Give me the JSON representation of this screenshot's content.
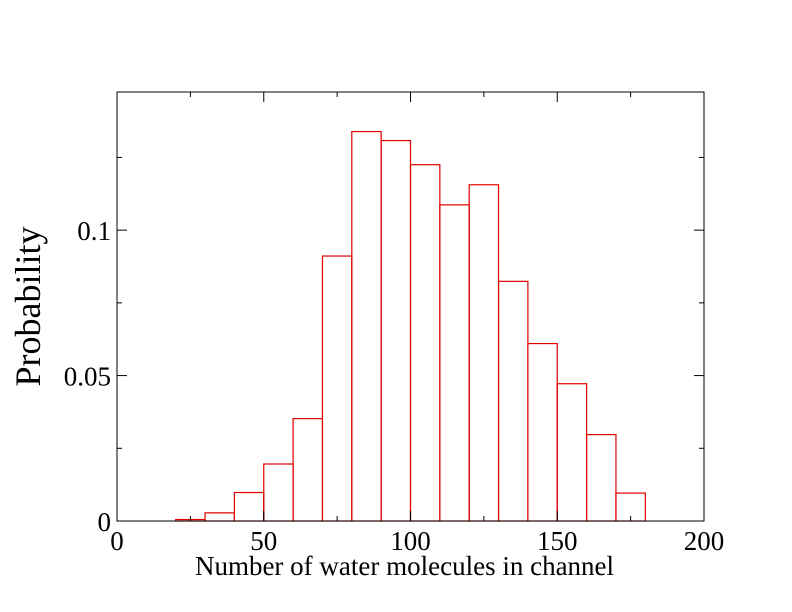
{
  "chart_data": {
    "type": "bar",
    "xlabel": "Number of water molecules in channel",
    "ylabel": "Probability",
    "xlim": [
      0,
      200
    ],
    "ylim": [
      0,
      0.1475
    ],
    "x_ticks": [
      0,
      50,
      100,
      150,
      200
    ],
    "x_tick_labels": [
      "0",
      "50",
      "100",
      "150",
      "200"
    ],
    "y_ticks": [
      0,
      0.05,
      0.1
    ],
    "y_tick_labels": [
      "0",
      "0.05",
      "0.1"
    ],
    "bin_width": 10,
    "bins": [
      {
        "x_start": 20,
        "value": 0.0005
      },
      {
        "x_start": 30,
        "value": 0.0028
      },
      {
        "x_start": 40,
        "value": 0.0098
      },
      {
        "x_start": 50,
        "value": 0.0196
      },
      {
        "x_start": 60,
        "value": 0.0352
      },
      {
        "x_start": 70,
        "value": 0.0911
      },
      {
        "x_start": 80,
        "value": 0.1339
      },
      {
        "x_start": 90,
        "value": 0.1308
      },
      {
        "x_start": 100,
        "value": 0.1225
      },
      {
        "x_start": 110,
        "value": 0.1087
      },
      {
        "x_start": 120,
        "value": 0.1156
      },
      {
        "x_start": 130,
        "value": 0.0824
      },
      {
        "x_start": 140,
        "value": 0.061
      },
      {
        "x_start": 150,
        "value": 0.0472
      },
      {
        "x_start": 160,
        "value": 0.0297
      },
      {
        "x_start": 170,
        "value": 0.0096
      }
    ],
    "bar_style": "outline",
    "bar_color": "#e00000",
    "grid": false,
    "legend": "none"
  }
}
